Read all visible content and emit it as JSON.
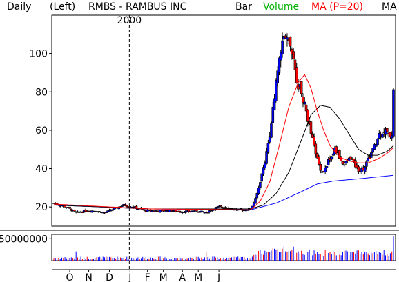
{
  "header": {
    "period": "Daily",
    "scale_side": "(Left)",
    "title": "RMBS - RAMBUS INC",
    "bar_label": "Bar",
    "volume_label": "Volume",
    "ma_label": "MA (P=20)",
    "ma2_label": "MA"
  },
  "colors": {
    "up": "#0000ff",
    "down": "#ff0000",
    "volume_label": "#00b000",
    "ma20": "#ff0000",
    "ma50": "#000000",
    "ma200": "#0000ff",
    "grid": "#000000"
  },
  "chart_data": {
    "type": "candlestick",
    "title": "RMBS - RAMBUS INC",
    "year_marker": "2000",
    "price_axis": {
      "ticks": [
        20,
        40,
        60,
        80,
        100
      ],
      "range": [
        10,
        120
      ]
    },
    "volume_axis": {
      "ticks": [
        "50000000"
      ],
      "range": [
        0,
        60000000
      ]
    },
    "x_labels": [
      "O",
      "N",
      "D",
      "J",
      "F",
      "M",
      "A",
      "M",
      "J"
    ],
    "price_path": [
      [
        0,
        22
      ],
      [
        8,
        20
      ],
      [
        14,
        17
      ],
      [
        20,
        18
      ],
      [
        26,
        18
      ],
      [
        32,
        17
      ],
      [
        38,
        19
      ],
      [
        44,
        21
      ],
      [
        50,
        20
      ],
      [
        58,
        18
      ],
      [
        66,
        18
      ],
      [
        74,
        18
      ],
      [
        82,
        17.5
      ],
      [
        90,
        18
      ],
      [
        96,
        17
      ],
      [
        100,
        19
      ],
      [
        104,
        20
      ],
      [
        108,
        20
      ],
      [
        112,
        19
      ],
      [
        116,
        18.5
      ],
      [
        120,
        18.5
      ],
      [
        124,
        19
      ],
      [
        127,
        24
      ],
      [
        129,
        30
      ],
      [
        131,
        37
      ],
      [
        133,
        44
      ],
      [
        135,
        53
      ],
      [
        137,
        63
      ],
      [
        139,
        78
      ],
      [
        141,
        92
      ],
      [
        143,
        103
      ],
      [
        145,
        108
      ],
      [
        147,
        110
      ],
      [
        149,
        103
      ],
      [
        151,
        95
      ],
      [
        153,
        85
      ],
      [
        155,
        82
      ],
      [
        157,
        76
      ],
      [
        159,
        70
      ],
      [
        161,
        62
      ],
      [
        163,
        55
      ],
      [
        165,
        48
      ],
      [
        167,
        42
      ],
      [
        169,
        38
      ],
      [
        171,
        40
      ],
      [
        173,
        44
      ],
      [
        175,
        46
      ],
      [
        177,
        50
      ],
      [
        179,
        48
      ],
      [
        181,
        44
      ],
      [
        183,
        42
      ],
      [
        185,
        44
      ],
      [
        187,
        46
      ],
      [
        189,
        43
      ],
      [
        191,
        40
      ],
      [
        193,
        39
      ],
      [
        195,
        40
      ],
      [
        197,
        43
      ],
      [
        199,
        46
      ],
      [
        201,
        50
      ],
      [
        203,
        53
      ],
      [
        205,
        58
      ],
      [
        207,
        59
      ],
      [
        209,
        60
      ],
      [
        211,
        57
      ],
      [
        213,
        58
      ],
      [
        214,
        82
      ]
    ],
    "ma20": [
      [
        0,
        21.5
      ],
      [
        60,
        19
      ],
      [
        124,
        18.5
      ],
      [
        130,
        23
      ],
      [
        136,
        33
      ],
      [
        142,
        52
      ],
      [
        148,
        72
      ],
      [
        154,
        85
      ],
      [
        158,
        89
      ],
      [
        162,
        82
      ],
      [
        166,
        70
      ],
      [
        170,
        60
      ],
      [
        174,
        52
      ],
      [
        180,
        46
      ],
      [
        186,
        44
      ],
      [
        192,
        43
      ],
      [
        198,
        43
      ],
      [
        204,
        45
      ],
      [
        210,
        48
      ],
      [
        214,
        51
      ]
    ],
    "ma50": [
      [
        0,
        21
      ],
      [
        60,
        19
      ],
      [
        124,
        19
      ],
      [
        132,
        21
      ],
      [
        140,
        27
      ],
      [
        148,
        38
      ],
      [
        156,
        55
      ],
      [
        162,
        68
      ],
      [
        168,
        73
      ],
      [
        174,
        72
      ],
      [
        180,
        66
      ],
      [
        186,
        58
      ],
      [
        192,
        50
      ],
      [
        198,
        47
      ],
      [
        204,
        47
      ],
      [
        210,
        49
      ],
      [
        214,
        52
      ]
    ],
    "ma200": [
      [
        0,
        21
      ],
      [
        30,
        20
      ],
      [
        60,
        19
      ],
      [
        124,
        18.5
      ],
      [
        140,
        22
      ],
      [
        156,
        28
      ],
      [
        166,
        32
      ],
      [
        176,
        33.5
      ],
      [
        190,
        34.5
      ],
      [
        202,
        35.5
      ],
      [
        214,
        36.5
      ]
    ]
  }
}
